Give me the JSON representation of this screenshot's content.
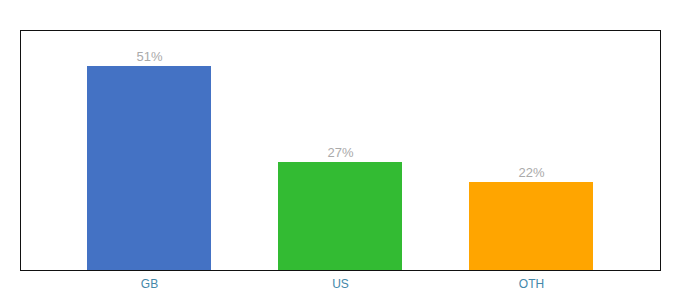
{
  "chart_data": {
    "type": "bar",
    "categories": [
      "GB",
      "US",
      "OTH"
    ],
    "values": [
      51,
      27,
      22
    ],
    "value_labels": [
      "51%",
      "27%",
      "22%"
    ],
    "colors": [
      "#4472C4",
      "#33BB33",
      "#FFA500"
    ],
    "ylim": [
      0,
      60
    ],
    "yticks": [],
    "grid": false,
    "data_labels": true,
    "tick_labels": "x"
  }
}
